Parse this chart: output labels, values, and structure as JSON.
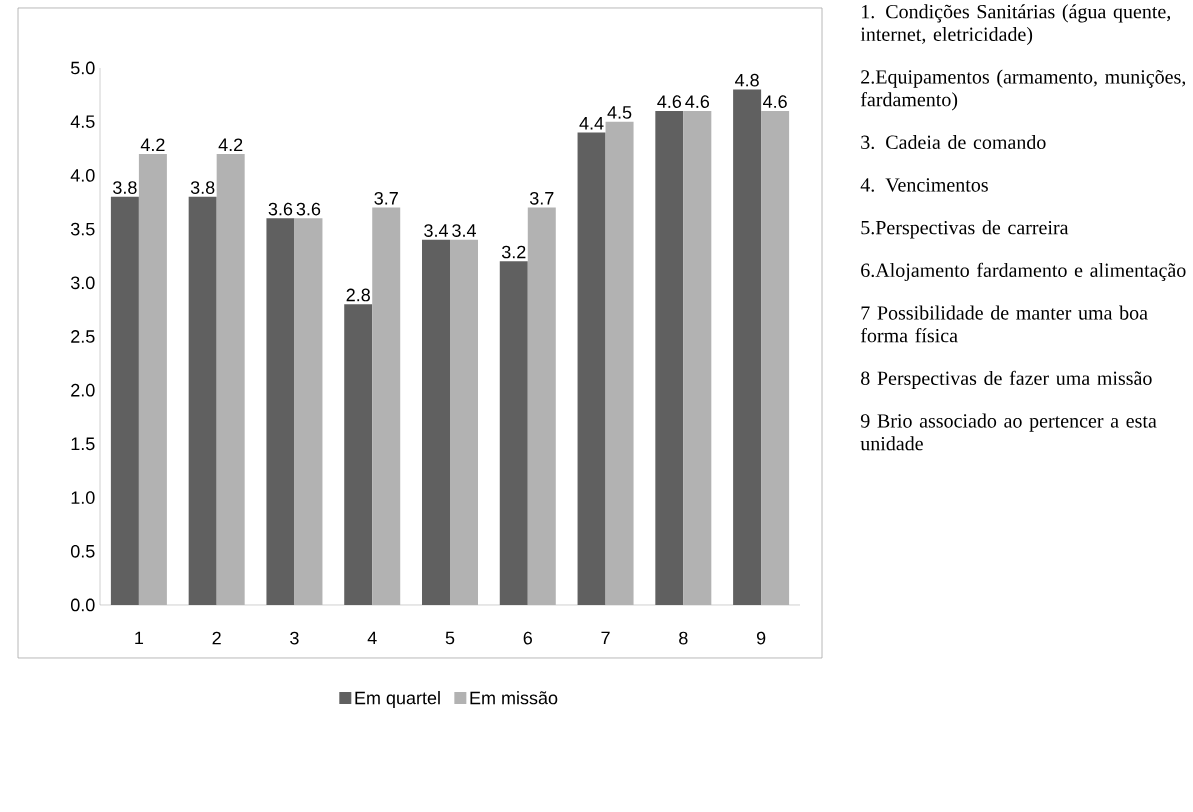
{
  "chart_data": {
    "type": "bar",
    "categories": [
      "1",
      "2",
      "3",
      "4",
      "5",
      "6",
      "7",
      "8",
      "9"
    ],
    "series": [
      {
        "name": "Em quartel",
        "color": "#606060",
        "values": [
          3.8,
          3.8,
          3.6,
          2.8,
          3.4,
          3.2,
          4.4,
          4.6,
          4.8
        ]
      },
      {
        "name": "Em missão",
        "color": "#b2b2b2",
        "values": [
          4.2,
          4.2,
          3.6,
          3.7,
          3.4,
          3.7,
          4.5,
          4.6,
          4.6
        ]
      }
    ],
    "ylim": [
      0,
      5
    ],
    "yticks": [
      {
        "value": 0,
        "label": "0.0"
      },
      {
        "value": 0.5,
        "label": "0.5"
      },
      {
        "value": 1,
        "label": "1.0"
      },
      {
        "value": 1.5,
        "label": "1.5"
      },
      {
        "value": 2,
        "label": "2.0"
      },
      {
        "value": 2.5,
        "label": "2.5"
      },
      {
        "value": 3,
        "label": "3.0"
      },
      {
        "value": 3.5,
        "label": "3.5"
      },
      {
        "value": 4,
        "label": "4.0"
      },
      {
        "value": 4.5,
        "label": "4.5"
      },
      {
        "value": 5,
        "label": "5.0"
      }
    ],
    "data_labels": true,
    "grid": false,
    "legend": "bottom",
    "annotations": [
      "1. Condições Sanitárias (água quente, internet, eletricidade)",
      "2.Equipamentos (armamento, munições, fardamento)",
      "3. Cadeia de comando",
      "4. Vencimentos",
      "5.Perspectivas de carreira",
      "6.Alojamento fardamento e alimentação",
      "7 Possibilidade de manter uma boa forma física",
      "8 Perspectivas de fazer uma missão",
      "9 Brio associado ao pertencer a esta unidade"
    ]
  }
}
